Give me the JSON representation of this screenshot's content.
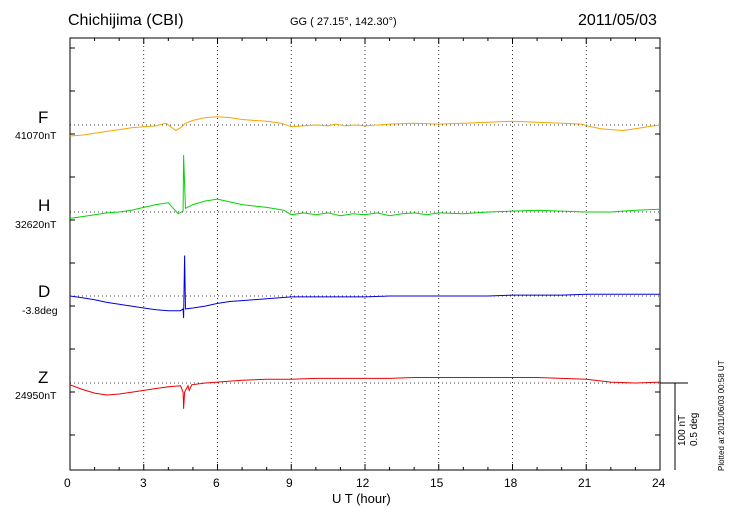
{
  "header": {
    "station": "Chichijima (CBI)",
    "coords": "GG ( 27.15°, 142.30°)",
    "date": "2011/05/03"
  },
  "components": [
    {
      "letter": "F",
      "baseline": "41070nT",
      "color": "#f5a800"
    },
    {
      "letter": "H",
      "baseline": "32620nT",
      "color": "#00d800"
    },
    {
      "letter": "D",
      "baseline": "-3.8deg",
      "color": "#0000dd"
    },
    {
      "letter": "Z",
      "baseline": "24950nT",
      "color": "#ee0000"
    }
  ],
  "scale": {
    "line1": "100 nT",
    "line2": "0.5 deg"
  },
  "plotted": "Plotted at 2011/06/03 00:58 UT",
  "chart_data": {
    "type": "line",
    "title": "Chichijima (CBI)",
    "xlabel": "U T (hour)",
    "x_ticks": [
      "0",
      "3",
      "6",
      "9",
      "12",
      "15",
      "18",
      "21",
      "24"
    ],
    "xlim": [
      0,
      24
    ],
    "grid": true,
    "y_scale_note": "100 nT / 0.5 deg per scale bar",
    "series": [
      {
        "name": "F",
        "color": "#f5a800",
        "unit": "nT",
        "points": [
          [
            0,
            -12
          ],
          [
            0.5,
            -11
          ],
          [
            1,
            -9
          ],
          [
            1.5,
            -7
          ],
          [
            2,
            -5
          ],
          [
            2.5,
            -3
          ],
          [
            3,
            -2
          ],
          [
            3.5,
            -1
          ],
          [
            3.9,
            2
          ],
          [
            4.1,
            -2
          ],
          [
            4.3,
            -6
          ],
          [
            4.5,
            -3
          ],
          [
            4.7,
            2
          ],
          [
            5,
            5
          ],
          [
            5.5,
            8
          ],
          [
            6,
            9
          ],
          [
            6.5,
            8
          ],
          [
            7,
            6
          ],
          [
            8,
            4
          ],
          [
            8.6,
            2
          ],
          [
            9,
            -2
          ],
          [
            9.5,
            -1
          ],
          [
            10,
            0
          ],
          [
            10.5,
            -1
          ],
          [
            10.8,
            1
          ],
          [
            11.2,
            -1
          ],
          [
            11.6,
            0
          ],
          [
            12,
            -1
          ],
          [
            13,
            1
          ],
          [
            14,
            2
          ],
          [
            15,
            1
          ],
          [
            16,
            2
          ],
          [
            17,
            3
          ],
          [
            18,
            4
          ],
          [
            19,
            3
          ],
          [
            20,
            2
          ],
          [
            20.8,
            1
          ],
          [
            21.2,
            -2
          ],
          [
            21.6,
            -4
          ],
          [
            22,
            -5
          ],
          [
            22.5,
            -6
          ],
          [
            23,
            -4
          ],
          [
            23.5,
            -2
          ],
          [
            24,
            0
          ]
        ]
      },
      {
        "name": "H",
        "color": "#00d800",
        "unit": "nT",
        "points": [
          [
            0,
            -7
          ],
          [
            0.5,
            -5
          ],
          [
            1,
            -3
          ],
          [
            1.5,
            -1
          ],
          [
            2,
            0
          ],
          [
            2.5,
            2
          ],
          [
            3,
            5
          ],
          [
            3.5,
            8
          ],
          [
            4,
            10
          ],
          [
            4.2,
            4
          ],
          [
            4.4,
            -2
          ],
          [
            4.6,
            1
          ],
          [
            4.62,
            62
          ],
          [
            4.66,
            30
          ],
          [
            4.7,
            4
          ],
          [
            5,
            8
          ],
          [
            5.5,
            12
          ],
          [
            6,
            14
          ],
          [
            6.5,
            11
          ],
          [
            7,
            8
          ],
          [
            8,
            5
          ],
          [
            8.7,
            2
          ],
          [
            9,
            -3
          ],
          [
            9.5,
            -1
          ],
          [
            10,
            -3
          ],
          [
            10.5,
            -1
          ],
          [
            11,
            -4
          ],
          [
            11.5,
            -2
          ],
          [
            12,
            -3
          ],
          [
            12.5,
            -1
          ],
          [
            13,
            -4
          ],
          [
            13.5,
            -2
          ],
          [
            14,
            -1
          ],
          [
            14.5,
            -3
          ],
          [
            15,
            -1
          ],
          [
            16,
            -2
          ],
          [
            17,
            0
          ],
          [
            18,
            1
          ],
          [
            19,
            2
          ],
          [
            20,
            1
          ],
          [
            21,
            0
          ],
          [
            22,
            0
          ],
          [
            23,
            2
          ],
          [
            24,
            3
          ]
        ]
      },
      {
        "name": "D",
        "color": "#0000dd",
        "unit": "deg",
        "points": [
          [
            0,
            0
          ],
          [
            0.5,
            -2
          ],
          [
            1,
            -4
          ],
          [
            1.5,
            -7
          ],
          [
            2,
            -9
          ],
          [
            2.5,
            -11
          ],
          [
            3,
            -13
          ],
          [
            3.5,
            -15
          ],
          [
            4,
            -16
          ],
          [
            4.5,
            -16
          ],
          [
            4.6,
            -14
          ],
          [
            4.62,
            -24
          ],
          [
            4.66,
            44
          ],
          [
            4.7,
            -14
          ],
          [
            5,
            -13
          ],
          [
            5.5,
            -11
          ],
          [
            6,
            -8
          ],
          [
            6.5,
            -6
          ],
          [
            7,
            -5
          ],
          [
            8,
            -3
          ],
          [
            9,
            -1
          ],
          [
            10,
            -1
          ],
          [
            11,
            -1
          ],
          [
            12,
            -1
          ],
          [
            13,
            0
          ],
          [
            14,
            0
          ],
          [
            15,
            0
          ],
          [
            16,
            0
          ],
          [
            17,
            0
          ],
          [
            18,
            1
          ],
          [
            19,
            1
          ],
          [
            20,
            1
          ],
          [
            21,
            2
          ],
          [
            22,
            2
          ],
          [
            23,
            2
          ],
          [
            24,
            2
          ]
        ]
      },
      {
        "name": "Z",
        "color": "#ee0000",
        "unit": "nT",
        "points": [
          [
            0,
            -2
          ],
          [
            0.5,
            -7
          ],
          [
            1,
            -11
          ],
          [
            1.5,
            -13
          ],
          [
            2,
            -12
          ],
          [
            2.5,
            -10
          ],
          [
            3,
            -8
          ],
          [
            3.5,
            -6
          ],
          [
            4,
            -4
          ],
          [
            4.5,
            -3
          ],
          [
            4.6,
            -10
          ],
          [
            4.62,
            -28
          ],
          [
            4.66,
            -10
          ],
          [
            4.8,
            -3
          ],
          [
            4.85,
            -8
          ],
          [
            4.95,
            -2
          ],
          [
            5.5,
            0
          ],
          [
            6,
            1
          ],
          [
            7,
            3
          ],
          [
            8,
            4
          ],
          [
            9,
            4
          ],
          [
            10,
            5
          ],
          [
            11,
            5
          ],
          [
            12,
            5
          ],
          [
            13,
            5
          ],
          [
            14,
            6
          ],
          [
            15,
            6
          ],
          [
            16,
            6
          ],
          [
            17,
            6
          ],
          [
            18,
            6
          ],
          [
            19,
            6
          ],
          [
            20,
            5
          ],
          [
            21,
            4
          ],
          [
            22,
            1
          ],
          [
            23,
            0
          ],
          [
            24,
            1
          ]
        ]
      }
    ]
  }
}
